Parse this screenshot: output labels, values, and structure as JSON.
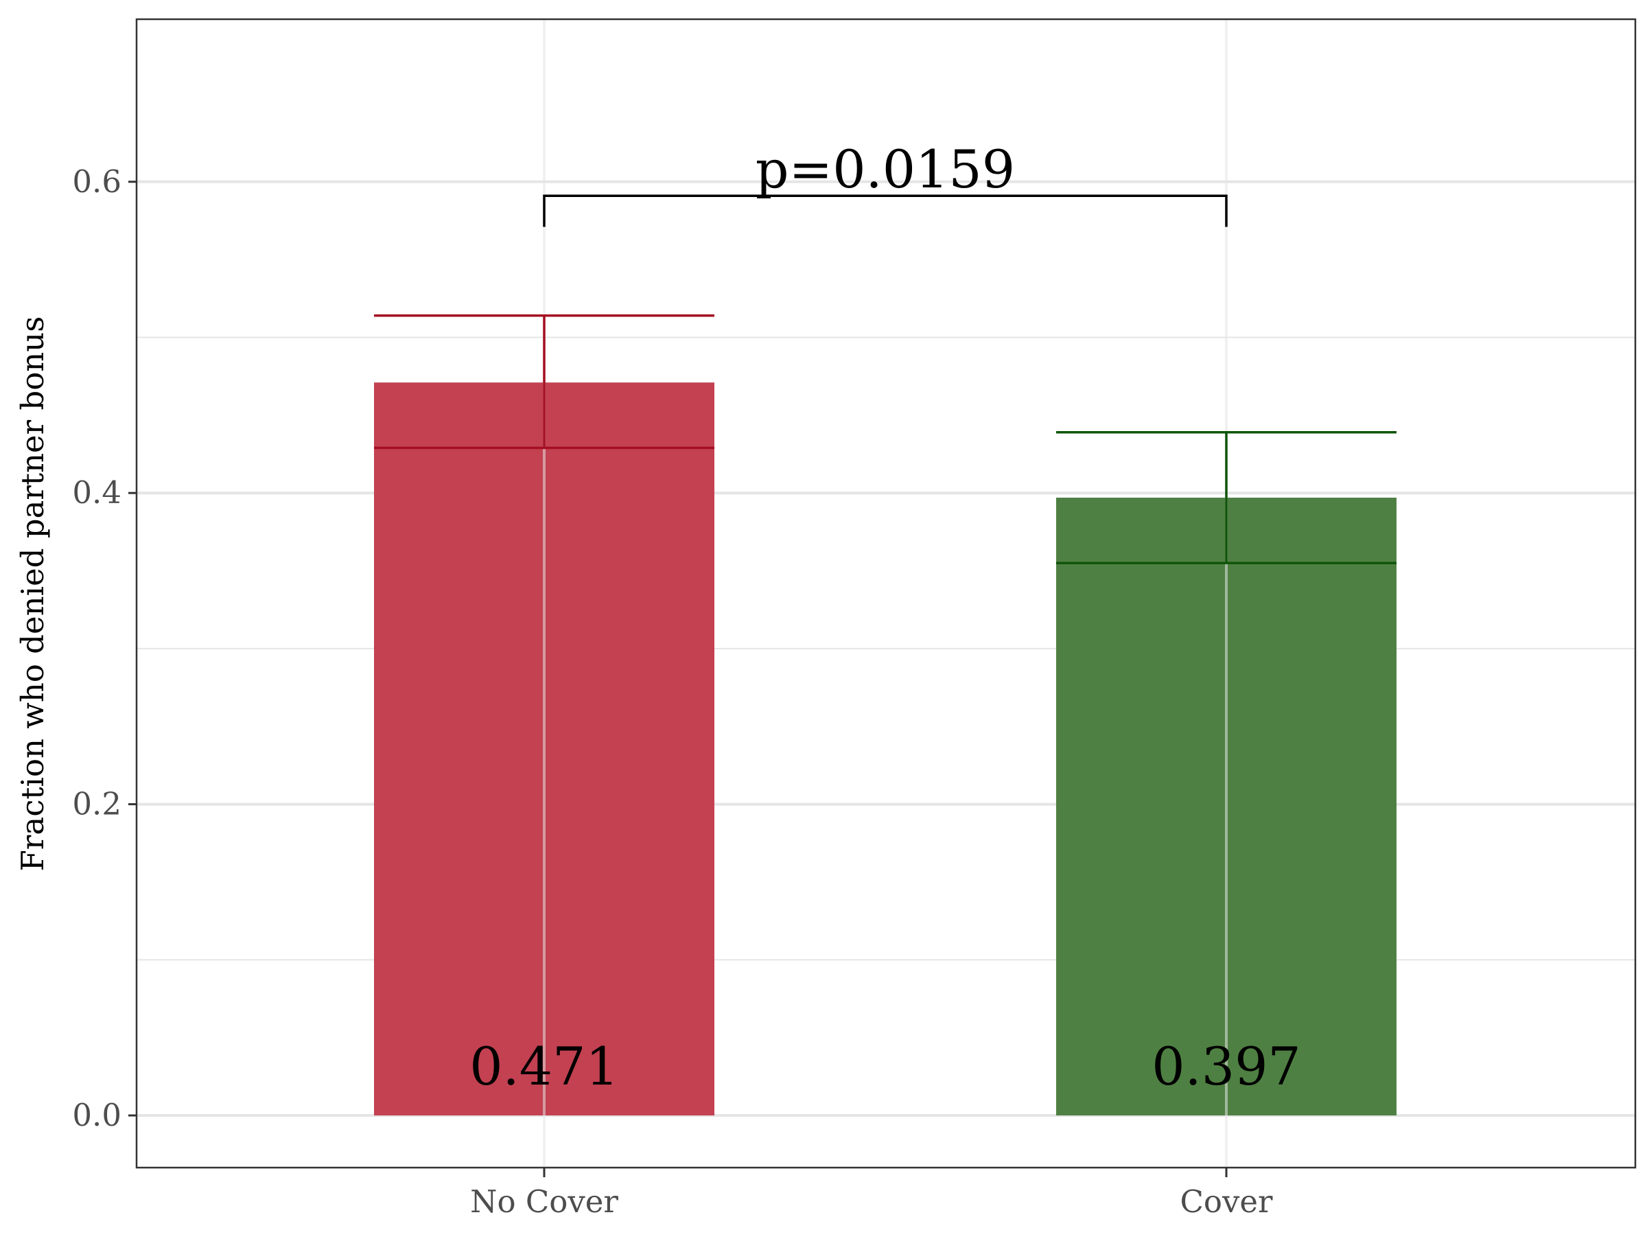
{
  "chart_data": {
    "type": "bar",
    "title": "",
    "xlabel": "",
    "ylabel": "Fraction who denied partner bonus",
    "categories": [
      "No Cover",
      "Cover"
    ],
    "values": [
      0.471,
      0.397
    ],
    "value_labels": [
      "0.471",
      "0.397"
    ],
    "error_bars": [
      {
        "low": 0.429,
        "high": 0.514
      },
      {
        "low": 0.355,
        "high": 0.439
      }
    ],
    "colors": {
      "bars": [
        "#c34151",
        "#4f8043"
      ],
      "error_bars": [
        "#a50f22",
        "#0f550a"
      ],
      "grid": "#e5e5e5",
      "panel_border": "#333333",
      "bracket": "#000000"
    },
    "ylim": [
      -0.033,
      0.7
    ],
    "yticks": [
      0.0,
      0.2,
      0.4,
      0.6
    ],
    "ytick_labels": [
      "0.0",
      "0.2",
      "0.4",
      "0.6"
    ],
    "grid": true,
    "legend": false,
    "annotation": {
      "text": "p=0.0159",
      "from_category": 0,
      "to_category": 1,
      "bracket_top": 0.591,
      "bracket_bottom": 0.571
    }
  }
}
